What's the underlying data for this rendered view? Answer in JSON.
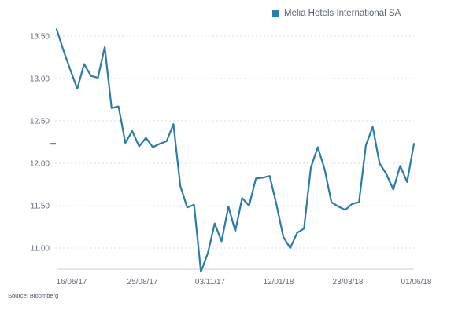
{
  "legend": {
    "label": "Melia Hotels International SA",
    "color": "#2b7bab"
  },
  "source": "Source: Bloomberg",
  "last_value_marker": 12.23,
  "chart_data": {
    "type": "line",
    "title": "",
    "xlabel": "",
    "ylabel": "",
    "ylim": [
      10.72,
      13.62
    ],
    "y_ticks": [
      "13.50",
      "13.00",
      "12.50",
      "12.00",
      "11.50",
      "11.00"
    ],
    "x_ticks": [
      "16/06/17",
      "25/08/17",
      "03/11/17",
      "12/01/18",
      "23/03/18",
      "01/06/18"
    ],
    "grid": true,
    "series": [
      {
        "name": "Melia Hotels International SA",
        "color": "#2b7bab",
        "values": [
          13.58,
          13.33,
          13.1,
          12.88,
          13.17,
          13.03,
          13.01,
          13.37,
          12.65,
          12.67,
          12.24,
          12.38,
          12.2,
          12.3,
          12.19,
          12.23,
          12.26,
          12.46,
          11.73,
          11.48,
          11.51,
          10.72,
          10.94,
          11.29,
          11.08,
          11.49,
          11.2,
          11.59,
          11.5,
          11.82,
          11.83,
          11.85,
          11.51,
          11.13,
          11.0,
          11.18,
          11.23,
          11.95,
          12.19,
          11.93,
          11.54,
          11.49,
          11.45,
          11.52,
          11.54,
          12.21,
          12.43,
          12.0,
          11.87,
          11.69,
          11.97,
          11.78,
          12.23
        ]
      }
    ]
  }
}
